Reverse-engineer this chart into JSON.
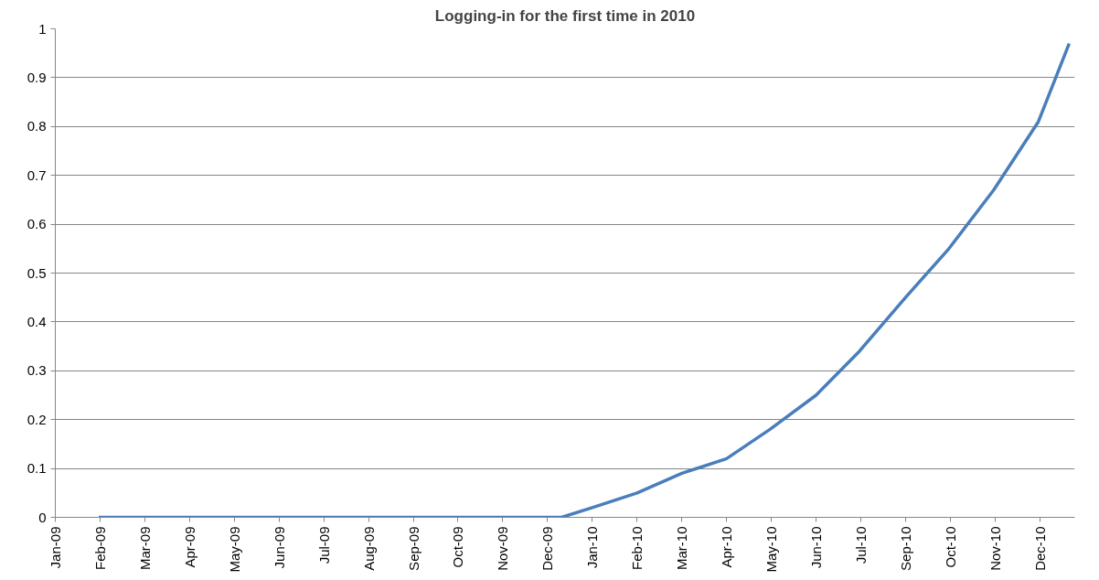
{
  "chart_data": {
    "type": "line",
    "title": "Logging-in for the first time in 2010",
    "x": [
      "2009-02-01",
      "2009-12-29",
      "2010-01-20",
      "2010-02-21",
      "2010-03-25",
      "2010-04-26",
      "2010-05-27",
      "2010-06-29",
      "2010-07-30",
      "2010-09-01",
      "2010-10-02",
      "2010-11-03",
      "2010-12-05",
      "2010-12-27"
    ],
    "series": [
      {
        "color": "#4a7ebb",
        "values": [
          0,
          0,
          0.02,
          0.05,
          0.09,
          0.12,
          0.18,
          0.25,
          0.34,
          0.45,
          0.55,
          0.67,
          0.81,
          0.97
        ]
      }
    ],
    "xlim": [
      "2009-01-01",
      "2010-12-31"
    ],
    "xticks": [
      {
        "value": "2009-01-01",
        "label": "Jan-09"
      },
      {
        "value": "2009-02-02",
        "label": "Feb-09"
      },
      {
        "value": "2009-03-06",
        "label": "Mar-09"
      },
      {
        "value": "2009-04-07",
        "label": "Apr-09"
      },
      {
        "value": "2009-05-09",
        "label": "May-09"
      },
      {
        "value": "2009-06-10",
        "label": "Jun-09"
      },
      {
        "value": "2009-07-12",
        "label": "Jul-09"
      },
      {
        "value": "2009-08-13",
        "label": "Aug-09"
      },
      {
        "value": "2009-09-14",
        "label": "Sep-09"
      },
      {
        "value": "2009-10-16",
        "label": "Oct-09"
      },
      {
        "value": "2009-11-17",
        "label": "Nov-09"
      },
      {
        "value": "2009-12-19",
        "label": "Dec-09"
      },
      {
        "value": "2010-01-20",
        "label": "Jan-10"
      },
      {
        "value": "2010-02-21",
        "label": "Feb-10"
      },
      {
        "value": "2010-03-25",
        "label": "Mar-10"
      },
      {
        "value": "2010-04-26",
        "label": "Apr-10"
      },
      {
        "value": "2010-05-28",
        "label": "May-10"
      },
      {
        "value": "2010-06-29",
        "label": "Jun-10"
      },
      {
        "value": "2010-07-31",
        "label": "Jul-10"
      },
      {
        "value": "2010-09-01",
        "label": "Sep-10"
      },
      {
        "value": "2010-10-03",
        "label": "Oct-10"
      },
      {
        "value": "2010-11-04",
        "label": "Nov-10"
      },
      {
        "value": "2010-12-06",
        "label": "Dec-10"
      }
    ],
    "ylim": [
      0,
      1
    ],
    "yticks": [
      0,
      0.1,
      0.2,
      0.3,
      0.4,
      0.5,
      0.6,
      0.7,
      0.8,
      0.9,
      1
    ],
    "grid": "y",
    "marker": "none",
    "line_style": "solid"
  }
}
